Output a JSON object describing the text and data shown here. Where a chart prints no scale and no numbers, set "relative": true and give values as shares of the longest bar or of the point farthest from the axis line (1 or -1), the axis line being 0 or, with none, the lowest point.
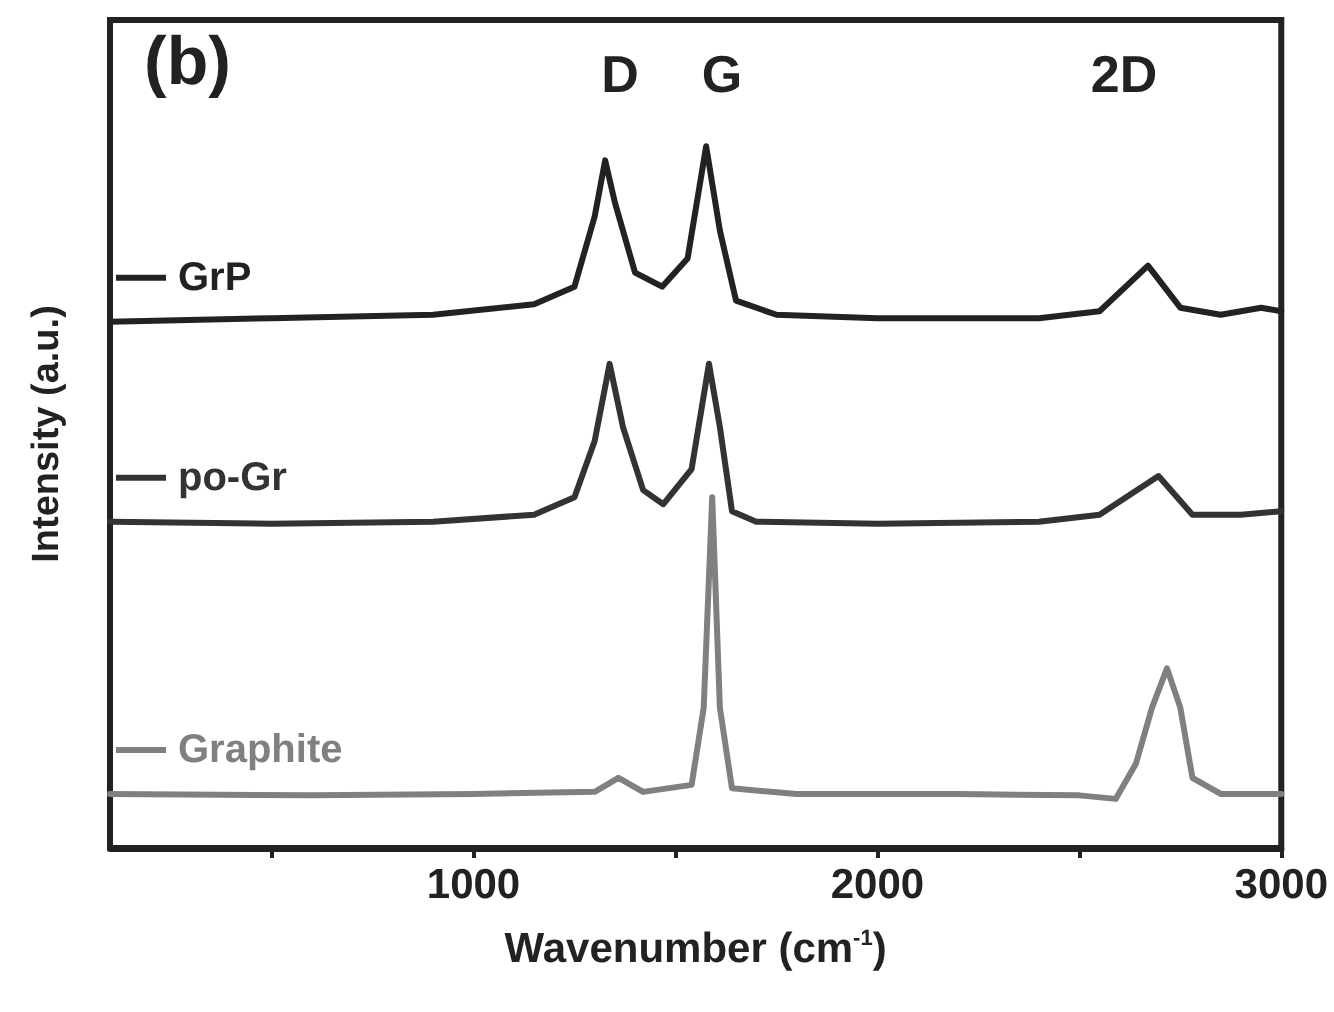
{
  "chart_data": {
    "type": "line",
    "relative": true,
    "marker": "none",
    "line_style": "solid",
    "xlabel": "Wavenumber (cm$^{-1}$)",
    "ylabel": "Intensity (a.u.)",
    "xlim": [
      100,
      3000
    ],
    "xticks": [
      {
        "value": 500,
        "label": null
      },
      1000,
      {
        "value": 1500,
        "label": null
      },
      2000,
      {
        "value": 2500,
        "label": null
      },
      3000
    ],
    "annotations": [
      "(b)",
      "D",
      "G",
      "2D"
    ],
    "legend": "left",
    "series": [
      {
        "name": "GrP",
        "color": "#222222",
        "x": [
          100,
          500,
          900,
          1150,
          1250,
          1300,
          1326,
          1350,
          1400,
          1467,
          1530,
          1576,
          1610,
          1650,
          1750,
          2000,
          2400,
          2550,
          2670,
          2750,
          2850,
          2950,
          3000
        ],
        "values": [
          0.75,
          0.755,
          0.76,
          0.775,
          0.8,
          0.9,
          0.98,
          0.92,
          0.82,
          0.8,
          0.84,
          1.0,
          0.88,
          0.78,
          0.76,
          0.755,
          0.755,
          0.765,
          0.83,
          0.77,
          0.76,
          0.77,
          0.765
        ]
      },
      {
        "name": "po-Gr",
        "color": "#333333",
        "x": [
          100,
          500,
          900,
          1150,
          1250,
          1300,
          1337,
          1370,
          1420,
          1470,
          1540,
          1583,
          1610,
          1640,
          1700,
          2000,
          2400,
          2550,
          2696,
          2780,
          2900,
          3000
        ],
        "values": [
          0.465,
          0.462,
          0.465,
          0.475,
          0.5,
          0.58,
          0.69,
          0.6,
          0.51,
          0.49,
          0.54,
          0.69,
          0.6,
          0.48,
          0.465,
          0.462,
          0.465,
          0.475,
          0.53,
          0.475,
          0.475,
          0.48
        ]
      },
      {
        "name": "Graphite",
        "color": "#808080",
        "x": [
          100,
          600,
          1000,
          1300,
          1359,
          1420,
          1540,
          1570,
          1591,
          1610,
          1640,
          1800,
          2200,
          2500,
          2590,
          2640,
          2680,
          2717,
          2750,
          2780,
          2850,
          3000
        ],
        "values": [
          0.077,
          0.075,
          0.077,
          0.08,
          0.1,
          0.08,
          0.09,
          0.2,
          0.5,
          0.2,
          0.085,
          0.077,
          0.077,
          0.075,
          0.07,
          0.12,
          0.2,
          0.256,
          0.2,
          0.1,
          0.077,
          0.077
        ]
      }
    ]
  }
}
